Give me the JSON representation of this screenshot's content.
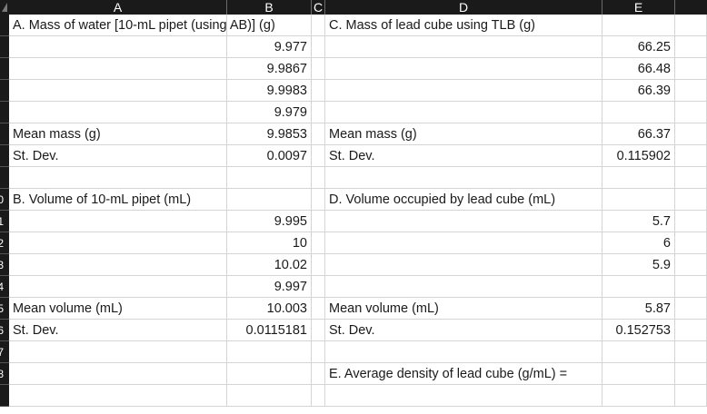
{
  "columns": [
    "A",
    "B",
    "C",
    "D",
    "E"
  ],
  "row_headers": [
    "",
    "",
    "",
    "",
    "",
    "",
    "",
    "",
    "0",
    "1",
    "2",
    "3",
    "4",
    "5",
    "6",
    "7",
    "8"
  ],
  "rows": [
    [
      "A. Mass of water [10-mL pipet (using AB)] (g)",
      "",
      "",
      "C. Mass of lead cube using TLB (g)",
      ""
    ],
    [
      "",
      "9.977",
      "",
      "",
      "66.25"
    ],
    [
      "",
      "9.9867",
      "",
      "",
      "66.48"
    ],
    [
      "",
      "9.9983",
      "",
      "",
      "66.39"
    ],
    [
      "",
      "9.979",
      "",
      "",
      ""
    ],
    [
      "Mean mass (g)",
      "9.9853",
      "",
      "Mean mass (g)",
      "66.37"
    ],
    [
      "St. Dev.",
      "0.0097",
      "",
      "St. Dev.",
      "0.115902"
    ],
    [
      "",
      "",
      "",
      "",
      ""
    ],
    [
      "B. Volume of 10-mL pipet (mL)",
      "",
      "",
      "D. Volume occupied by lead cube (mL)",
      ""
    ],
    [
      "",
      "9.995",
      "",
      "",
      "5.7"
    ],
    [
      "",
      "10",
      "",
      "",
      "6"
    ],
    [
      "",
      "10.02",
      "",
      "",
      "5.9"
    ],
    [
      "",
      "9.997",
      "",
      "",
      ""
    ],
    [
      "Mean volume (mL)",
      "10.003",
      "",
      "Mean volume (mL)",
      "5.87"
    ],
    [
      "St. Dev.",
      "0.0115181",
      "",
      "St. Dev.",
      "0.152753"
    ],
    [
      "",
      "",
      "",
      "",
      ""
    ],
    [
      "",
      "",
      "",
      "E. Average density of lead cube (g/mL) =",
      ""
    ],
    [
      "",
      "",
      "",
      "",
      ""
    ]
  ]
}
